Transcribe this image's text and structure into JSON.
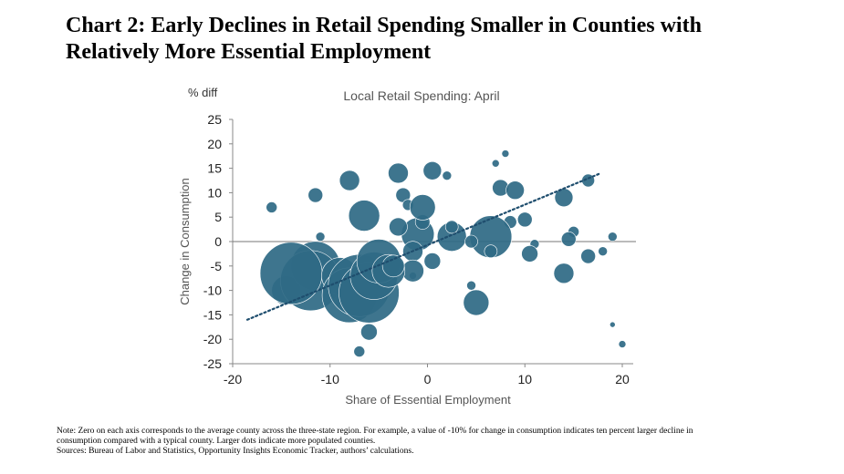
{
  "title_line1": "Chart 2: Early Declines in Retail Spending Smaller in Counties with",
  "title_line2": "Relatively More Essential Employment",
  "notes": {
    "line1": "Note: Zero on each axis corresponds to the average county across the three-state region. For example, a value of -10% for change in consumption indicates ten percent larger decline in",
    "line2": "consumption compared with a typical county. Larger dots indicate more populated counties.",
    "line3": "Sources: Bureau of Labor and Statistics, Opportunity Insights Economic Tracker, authors’ calculations."
  },
  "chart_data": {
    "type": "scatter",
    "title": "Local Retail Spending: April",
    "xlabel": "Share of Essential Employment",
    "ylabel": "Change in Consumption",
    "y_unit": "% diff",
    "xlim": [
      -20,
      20
    ],
    "ylim": [
      -25,
      25
    ],
    "x_ticks": [
      -20,
      -10,
      0,
      10,
      20
    ],
    "y_ticks": [
      25,
      20,
      15,
      10,
      5,
      0,
      -5,
      -10,
      -15,
      -20,
      -25
    ],
    "zero_line": true,
    "grid": false,
    "marker_color": "#2f6a85",
    "trendline": {
      "style": "dotted",
      "color": "#1f4e6e",
      "from": [
        -18.5,
        -16
      ],
      "to": [
        17.8,
        14
      ]
    },
    "points": [
      {
        "x": -16,
        "y": 7,
        "size": 6
      },
      {
        "x": -11.5,
        "y": 9.5,
        "size": 8
      },
      {
        "x": -8,
        "y": 12.5,
        "size": 11
      },
      {
        "x": -6.5,
        "y": 5.3,
        "size": 17
      },
      {
        "x": -3,
        "y": 14,
        "size": 11
      },
      {
        "x": 0.5,
        "y": 14.5,
        "size": 10
      },
      {
        "x": 2,
        "y": 13.5,
        "size": 5
      },
      {
        "x": 7,
        "y": 16,
        "size": 4
      },
      {
        "x": 8,
        "y": 18,
        "size": 4
      },
      {
        "x": 7.5,
        "y": 11,
        "size": 9
      },
      {
        "x": 9,
        "y": 10.5,
        "size": 10
      },
      {
        "x": 14,
        "y": 9,
        "size": 10
      },
      {
        "x": 16.5,
        "y": 12.5,
        "size": 7
      },
      {
        "x": 19,
        "y": 1,
        "size": 5
      },
      {
        "x": 18,
        "y": -2,
        "size": 5
      },
      {
        "x": 15,
        "y": 2,
        "size": 6
      },
      {
        "x": 14.5,
        "y": 0.5,
        "size": 8
      },
      {
        "x": 16.5,
        "y": -3,
        "size": 8
      },
      {
        "x": 14,
        "y": -6.5,
        "size": 11
      },
      {
        "x": 10,
        "y": 4.5,
        "size": 8
      },
      {
        "x": 8.5,
        "y": 4,
        "size": 7
      },
      {
        "x": 11,
        "y": -0.5,
        "size": 5
      },
      {
        "x": 10.5,
        "y": -2.5,
        "size": 9
      },
      {
        "x": 19,
        "y": -17,
        "size": 3
      },
      {
        "x": 20,
        "y": -21,
        "size": 4
      },
      {
        "x": -2.5,
        "y": 9.5,
        "size": 8
      },
      {
        "x": -2,
        "y": 7.5,
        "size": 6
      },
      {
        "x": -1,
        "y": 1.5,
        "size": 18
      },
      {
        "x": -0.5,
        "y": 4,
        "size": 8
      },
      {
        "x": -0.5,
        "y": 7,
        "size": 14
      },
      {
        "x": 2.5,
        "y": 1,
        "size": 16
      },
      {
        "x": 2.5,
        "y": 3,
        "size": 7
      },
      {
        "x": 6.5,
        "y": 1,
        "size": 23
      },
      {
        "x": 6.5,
        "y": -2,
        "size": 7
      },
      {
        "x": 4.5,
        "y": 0,
        "size": 7
      },
      {
        "x": -3,
        "y": 3,
        "size": 10
      },
      {
        "x": -1.5,
        "y": -2,
        "size": 11
      },
      {
        "x": 0.5,
        "y": -4,
        "size": 9
      },
      {
        "x": -1.5,
        "y": -7,
        "size": 4
      },
      {
        "x": -1.5,
        "y": -6,
        "size": 12
      },
      {
        "x": 4.5,
        "y": -9,
        "size": 5
      },
      {
        "x": 5,
        "y": -12.5,
        "size": 14
      },
      {
        "x": -11,
        "y": 1,
        "size": 5
      },
      {
        "x": -14.5,
        "y": -10,
        "size": 16
      },
      {
        "x": -11.5,
        "y": -5,
        "size": 27
      },
      {
        "x": -12,
        "y": -8,
        "size": 33
      },
      {
        "x": -14,
        "y": -6.5,
        "size": 34
      },
      {
        "x": -9,
        "y": -7,
        "size": 20
      },
      {
        "x": -8,
        "y": -11,
        "size": 30
      },
      {
        "x": -7,
        "y": -9,
        "size": 34
      },
      {
        "x": -6,
        "y": -10.5,
        "size": 33
      },
      {
        "x": -5.5,
        "y": -7,
        "size": 26
      },
      {
        "x": -5,
        "y": -4,
        "size": 24
      },
      {
        "x": -4,
        "y": -6,
        "size": 18
      },
      {
        "x": -3.5,
        "y": -5,
        "size": 12
      },
      {
        "x": -6,
        "y": -18.5,
        "size": 9
      },
      {
        "x": -7,
        "y": -22.5,
        "size": 6
      }
    ]
  }
}
